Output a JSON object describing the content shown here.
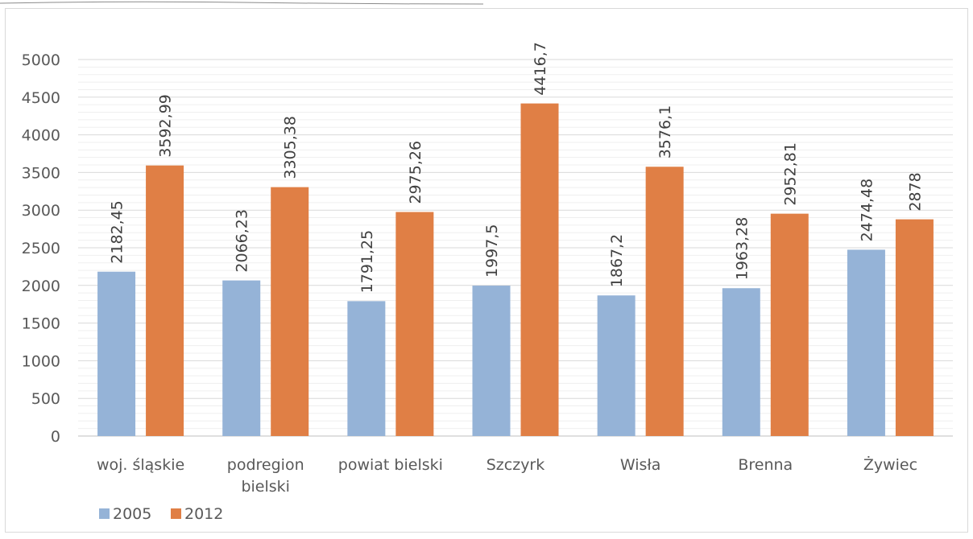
{
  "chart_data": {
    "type": "bar",
    "title": "",
    "xlabel": "",
    "ylabel": "",
    "ylim": [
      0,
      5000
    ],
    "yticks": [
      0,
      500,
      1000,
      1500,
      2000,
      2500,
      3000,
      3500,
      4000,
      4500,
      5000
    ],
    "ytick_labels": [
      "0",
      "500",
      "1000",
      "1500",
      "2000",
      "2500",
      "3000",
      "3500",
      "4000",
      "4500",
      "5000"
    ],
    "grid": true,
    "legend_position": "bottom-left",
    "categories": [
      "woj. śląskie",
      "podregion bielski",
      "powiat bielski",
      "Szczyrk",
      "Wisła",
      "Brenna",
      "Żywiec"
    ],
    "category_lines": [
      [
        "woj. śląskie"
      ],
      [
        "podregion",
        "bielski"
      ],
      [
        "powiat bielski"
      ],
      [
        "Szczyrk"
      ],
      [
        "Wisła"
      ],
      [
        "Brenna"
      ],
      [
        "Żywiec"
      ]
    ],
    "series": [
      {
        "name": "2005",
        "color": "#95b3d7",
        "values": [
          2182.45,
          2066.23,
          1791.25,
          1997.5,
          1867.2,
          1963.28,
          2474.48
        ],
        "labels": [
          "2182,45",
          "2066,23",
          "1791,25",
          "1997,5",
          "1867,2",
          "1963,28",
          "2474,48"
        ]
      },
      {
        "name": "2012",
        "color": "#e07f45",
        "values": [
          3592.99,
          3305.38,
          2975.26,
          4416.7,
          3576.1,
          2952.81,
          2878
        ],
        "labels": [
          "3592,99",
          "3305,38",
          "2975,26",
          "4416,7",
          "3576,1",
          "2952,81",
          "2878"
        ]
      }
    ]
  }
}
